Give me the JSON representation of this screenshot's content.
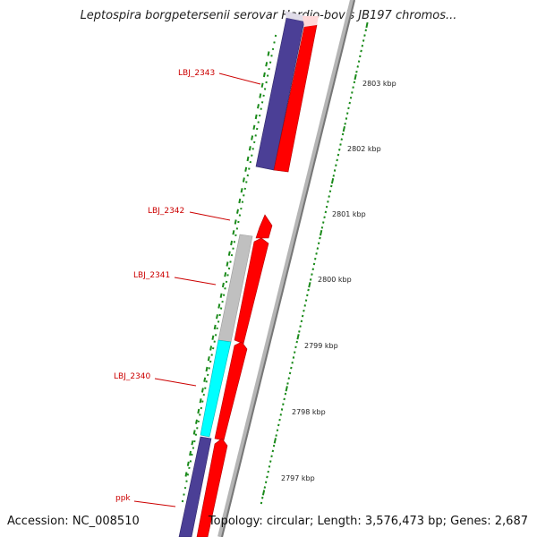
{
  "title": "Leptospira borgpetersenii serovar Hardjo-bovis JB197 chromos...",
  "footer": {
    "accession": "Accession: NC_008510",
    "topology": "Topology: circular; Length: 3,576,473 bp; Genes: 2,687"
  },
  "colors": {
    "forward_gene": "#ff0000",
    "reverse_purple": "#4b3f96",
    "reverse_gray": "#c0c0c0",
    "reverse_cyan": "#00ffff",
    "backbone": "#888888",
    "tick_green": "#1a8a1a",
    "gene_label": "#cc0000"
  },
  "scale": {
    "ticks": [
      {
        "label": "2797 kbp"
      },
      {
        "label": "2798 kbp"
      },
      {
        "label": "2799 kbp"
      },
      {
        "label": "2800 kbp"
      },
      {
        "label": "2801 kbp"
      },
      {
        "label": "2802 kbp"
      },
      {
        "label": "2803 kbp"
      }
    ]
  },
  "gene_labels": [
    {
      "name": "LBJ_2343"
    },
    {
      "name": "LBJ_2342"
    },
    {
      "name": "LBJ_2341"
    },
    {
      "name": "LBJ_2340"
    },
    {
      "name": "ppk"
    }
  ]
}
